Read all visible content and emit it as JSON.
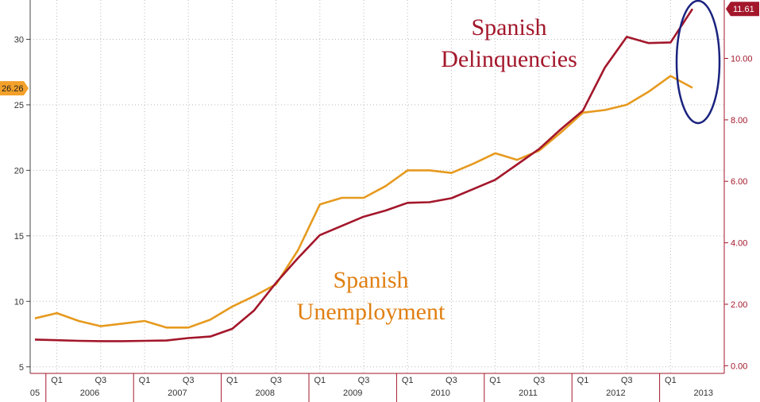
{
  "chart_data": {
    "type": "line",
    "title": "",
    "xlabel": "",
    "x": [
      "2005-Q4",
      "2006-Q1",
      "2006-Q2",
      "2006-Q3",
      "2006-Q4",
      "2007-Q1",
      "2007-Q2",
      "2007-Q3",
      "2007-Q4",
      "2008-Q1",
      "2008-Q2",
      "2008-Q3",
      "2008-Q4",
      "2009-Q1",
      "2009-Q2",
      "2009-Q3",
      "2009-Q4",
      "2010-Q1",
      "2010-Q2",
      "2010-Q3",
      "2010-Q4",
      "2011-Q1",
      "2011-Q2",
      "2011-Q3",
      "2011-Q4",
      "2012-Q1",
      "2012-Q2",
      "2012-Q3",
      "2012-Q4",
      "2013-Q1",
      "2013-Q2"
    ],
    "x_ticks": {
      "quarter_labels": [
        "Q1",
        "Q3",
        "Q1",
        "Q3",
        "Q1",
        "Q3",
        "Q1",
        "Q3",
        "Q1",
        "Q3",
        "Q1",
        "Q3",
        "Q1",
        "Q3",
        "Q1"
      ],
      "year_labels": [
        "05",
        "2006",
        "2007",
        "2008",
        "2009",
        "2010",
        "2011",
        "2012",
        "2013"
      ]
    },
    "left_axis": {
      "ylim": [
        4.5,
        33
      ],
      "ticks": [
        "5",
        "10",
        "15",
        "20",
        "25",
        "30"
      ]
    },
    "right_axis": {
      "ylim": [
        -0.25,
        11.9
      ],
      "ticks": [
        "0.00",
        "2.00",
        "4.00",
        "6.00",
        "8.00",
        "10.00"
      ]
    },
    "series": [
      {
        "name": "Spanish Unemployment",
        "axis": "left",
        "color": "#e69a1f",
        "last_value_label": "26.26",
        "values": [
          8.7,
          9.1,
          8.5,
          8.1,
          8.3,
          8.5,
          8.0,
          8.0,
          8.6,
          9.6,
          10.4,
          11.3,
          13.9,
          17.4,
          17.9,
          17.9,
          18.8,
          20.0,
          20.0,
          19.8,
          20.5,
          21.3,
          20.8,
          21.5,
          22.9,
          24.4,
          24.6,
          25.0,
          26.0,
          27.2,
          26.3
        ]
      },
      {
        "name": "Spanish Delinquencies",
        "axis": "right",
        "color": "#a3172b",
        "last_value_label": "11.61",
        "values": [
          0.85,
          0.83,
          0.81,
          0.8,
          0.8,
          0.81,
          0.82,
          0.9,
          0.95,
          1.2,
          1.8,
          2.7,
          3.5,
          4.25,
          4.55,
          4.85,
          5.05,
          5.3,
          5.32,
          5.45,
          5.75,
          6.05,
          6.55,
          7.05,
          7.7,
          8.3,
          9.7,
          10.7,
          10.5,
          10.52,
          11.61
        ]
      }
    ],
    "annotations": {
      "delinquencies_line1": "Spanish",
      "delinquencies_line2": "Delinquencies",
      "unemployment_line1": "Spanish",
      "unemployment_line2": "Unemployment"
    },
    "grid": true,
    "legend": "none"
  }
}
